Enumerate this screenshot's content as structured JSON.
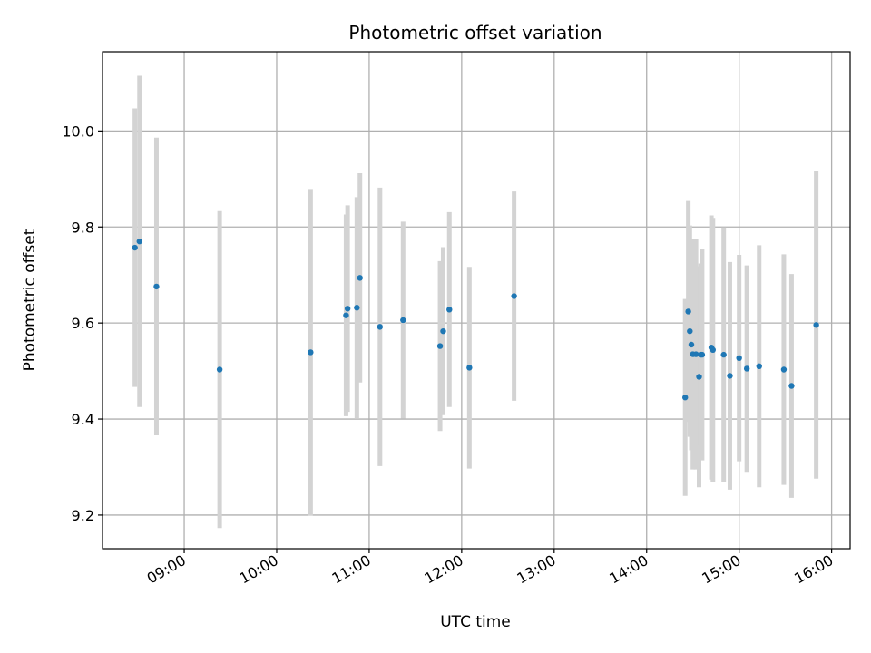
{
  "chart_data": {
    "type": "scatter",
    "title": "Photometric offset variation",
    "xlabel": "UTC time",
    "ylabel": "Photometric offset",
    "x_ticks": [
      "09:00",
      "10:00",
      "11:00",
      "12:00",
      "13:00",
      "14:00",
      "15:00",
      "16:00"
    ],
    "y_ticks": [
      "9.2",
      "9.4",
      "9.6",
      "9.8",
      "10.0"
    ],
    "xlim": [
      "08:07",
      "16:12"
    ],
    "ylim": [
      9.13,
      10.165
    ],
    "grid": true,
    "colors": {
      "point": "#1f77b4",
      "errorbar": "#d3d3d3",
      "grid": "#b0b0b0"
    },
    "points": [
      {
        "x": "08:28",
        "y": 9.757,
        "err": 0.29
      },
      {
        "x": "08:31",
        "y": 9.77,
        "err": 0.345
      },
      {
        "x": "08:42",
        "y": 9.676,
        "err": 0.31
      },
      {
        "x": "09:23",
        "y": 9.503,
        "err": 0.33
      },
      {
        "x": "10:22",
        "y": 9.539,
        "err": 0.34
      },
      {
        "x": "10:45",
        "y": 9.616,
        "err": 0.21
      },
      {
        "x": "10:46",
        "y": 9.63,
        "err": 0.215
      },
      {
        "x": "10:52",
        "y": 9.632,
        "err": 0.23
      },
      {
        "x": "10:54",
        "y": 9.694,
        "err": 0.218
      },
      {
        "x": "11:07",
        "y": 9.592,
        "err": 0.29
      },
      {
        "x": "11:22",
        "y": 9.606,
        "err": 0.205
      },
      {
        "x": "11:46",
        "y": 9.552,
        "err": 0.177
      },
      {
        "x": "11:48",
        "y": 9.583,
        "err": 0.175
      },
      {
        "x": "11:52",
        "y": 9.628,
        "err": 0.203
      },
      {
        "x": "12:05",
        "y": 9.507,
        "err": 0.21
      },
      {
        "x": "12:34",
        "y": 9.656,
        "err": 0.218
      },
      {
        "x": "14:25",
        "y": 9.445,
        "err": 0.205
      },
      {
        "x": "14:27",
        "y": 9.624,
        "err": 0.23
      },
      {
        "x": "14:28",
        "y": 9.583,
        "err": 0.22
      },
      {
        "x": "14:29",
        "y": 9.555,
        "err": 0.22
      },
      {
        "x": "14:30",
        "y": 9.535,
        "err": 0.24
      },
      {
        "x": "14:32",
        "y": 9.535,
        "err": 0.24
      },
      {
        "x": "14:34",
        "y": 9.488,
        "err": 0.23
      },
      {
        "x": "14:35",
        "y": 9.534,
        "err": 0.19
      },
      {
        "x": "14:36",
        "y": 9.534,
        "err": 0.22
      },
      {
        "x": "14:42",
        "y": 9.549,
        "err": 0.275
      },
      {
        "x": "14:43",
        "y": 9.544,
        "err": 0.275
      },
      {
        "x": "14:50",
        "y": 9.534,
        "err": 0.265
      },
      {
        "x": "14:54",
        "y": 9.49,
        "err": 0.237
      },
      {
        "x": "15:00",
        "y": 9.527,
        "err": 0.215
      },
      {
        "x": "15:05",
        "y": 9.505,
        "err": 0.215
      },
      {
        "x": "15:13",
        "y": 9.51,
        "err": 0.252
      },
      {
        "x": "15:29",
        "y": 9.503,
        "err": 0.24
      },
      {
        "x": "15:34",
        "y": 9.469,
        "err": 0.233
      },
      {
        "x": "15:50",
        "y": 9.596,
        "err": 0.32
      }
    ]
  }
}
